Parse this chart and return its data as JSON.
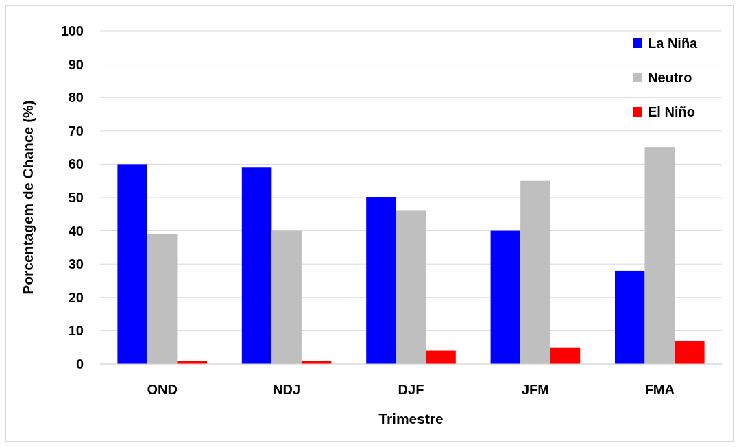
{
  "chart_data": {
    "type": "bar",
    "xlabel": "Trimestre",
    "ylabel": "Porcentagem de Chance (%)",
    "categories": [
      "OND",
      "NDJ",
      "DJF",
      "JFM",
      "FMA"
    ],
    "series": [
      {
        "name": "La Niña",
        "color": "#0000ff",
        "values": [
          60,
          59,
          50,
          40,
          28
        ]
      },
      {
        "name": "Neutro",
        "color": "#bfbfbf",
        "values": [
          39,
          40,
          46,
          55,
          65
        ]
      },
      {
        "name": "El Niño",
        "color": "#ff0000",
        "values": [
          1,
          1,
          4,
          5,
          7
        ]
      }
    ],
    "ylim": [
      0,
      100
    ],
    "yticks": [
      0,
      10,
      20,
      30,
      40,
      50,
      60,
      70,
      80,
      90,
      100
    ],
    "grid": "y",
    "legend": "top right"
  }
}
